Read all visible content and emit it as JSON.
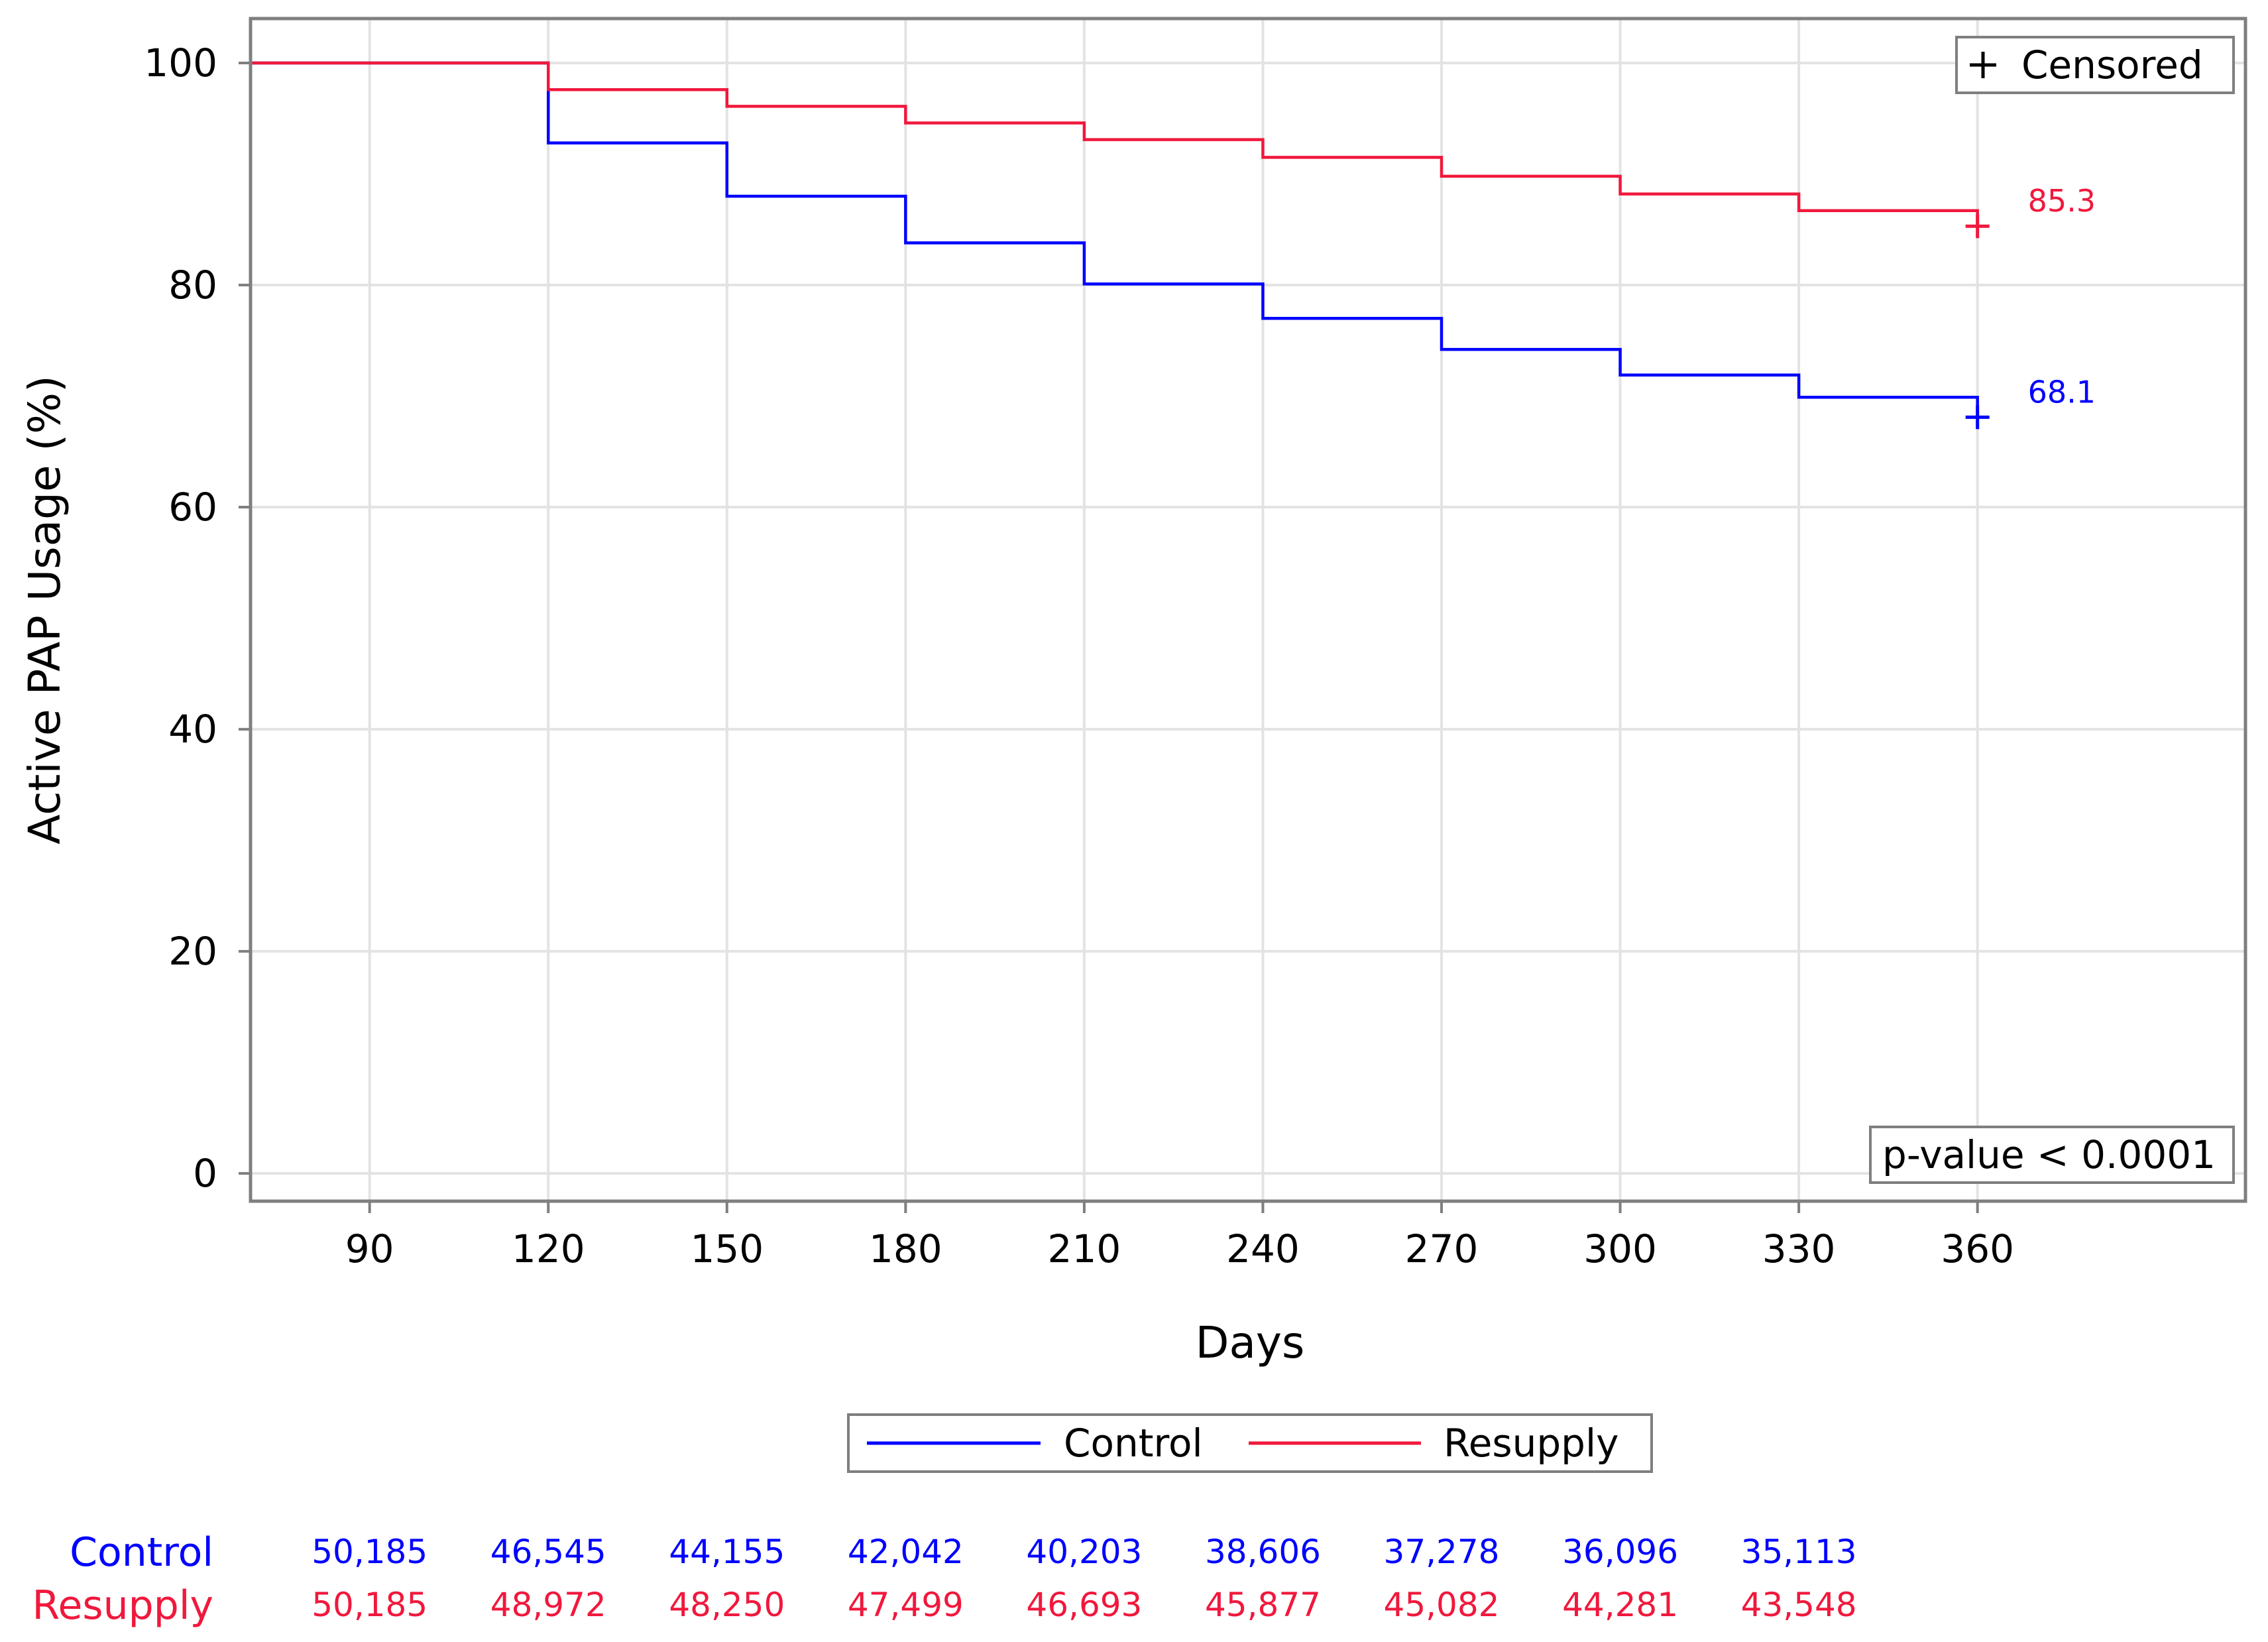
{
  "chart_data": {
    "type": "line",
    "xlabel": "Days",
    "ylabel": "Active PAP Usage (%)",
    "x_ticks": [
      90,
      120,
      150,
      180,
      210,
      240,
      270,
      300,
      330,
      360
    ],
    "y_ticks": [
      0,
      20,
      40,
      60,
      80,
      100
    ],
    "xlim": [
      70,
      405
    ],
    "ylim": [
      -2.5,
      104
    ],
    "grid": true,
    "step": true,
    "series": [
      {
        "name": "Control",
        "color": "#0000ff",
        "x": [
          70,
          120,
          150,
          180,
          210,
          240,
          270,
          300,
          330,
          360
        ],
        "y": [
          100,
          92.8,
          88.0,
          83.8,
          80.1,
          77.0,
          74.2,
          71.9,
          69.9,
          68.1
        ],
        "end_label": "68.1"
      },
      {
        "name": "Resupply",
        "color": "#f0183c",
        "x": [
          70,
          120,
          150,
          180,
          210,
          240,
          270,
          300,
          330,
          360
        ],
        "y": [
          100,
          97.6,
          96.1,
          94.6,
          93.1,
          91.5,
          89.8,
          88.2,
          86.7,
          85.3
        ],
        "end_label": "85.3"
      }
    ],
    "censored_legend": "Censored",
    "censored_symbol": "+",
    "annotation": "p-value < 0.0001",
    "legend_position": "bottom",
    "risk_table": {
      "rows": [
        {
          "name": "Control",
          "color": "#0000ff",
          "values": [
            "50,185",
            "46,545",
            "44,155",
            "42,042",
            "40,203",
            "38,606",
            "37,278",
            "36,096",
            "35,113"
          ]
        },
        {
          "name": "Resupply",
          "color": "#f0183c",
          "values": [
            "50,185",
            "48,972",
            "48,250",
            "47,499",
            "46,693",
            "45,877",
            "45,082",
            "44,281",
            "43,548"
          ]
        }
      ],
      "x": [
        90,
        120,
        150,
        180,
        210,
        240,
        270,
        300,
        330
      ]
    }
  }
}
